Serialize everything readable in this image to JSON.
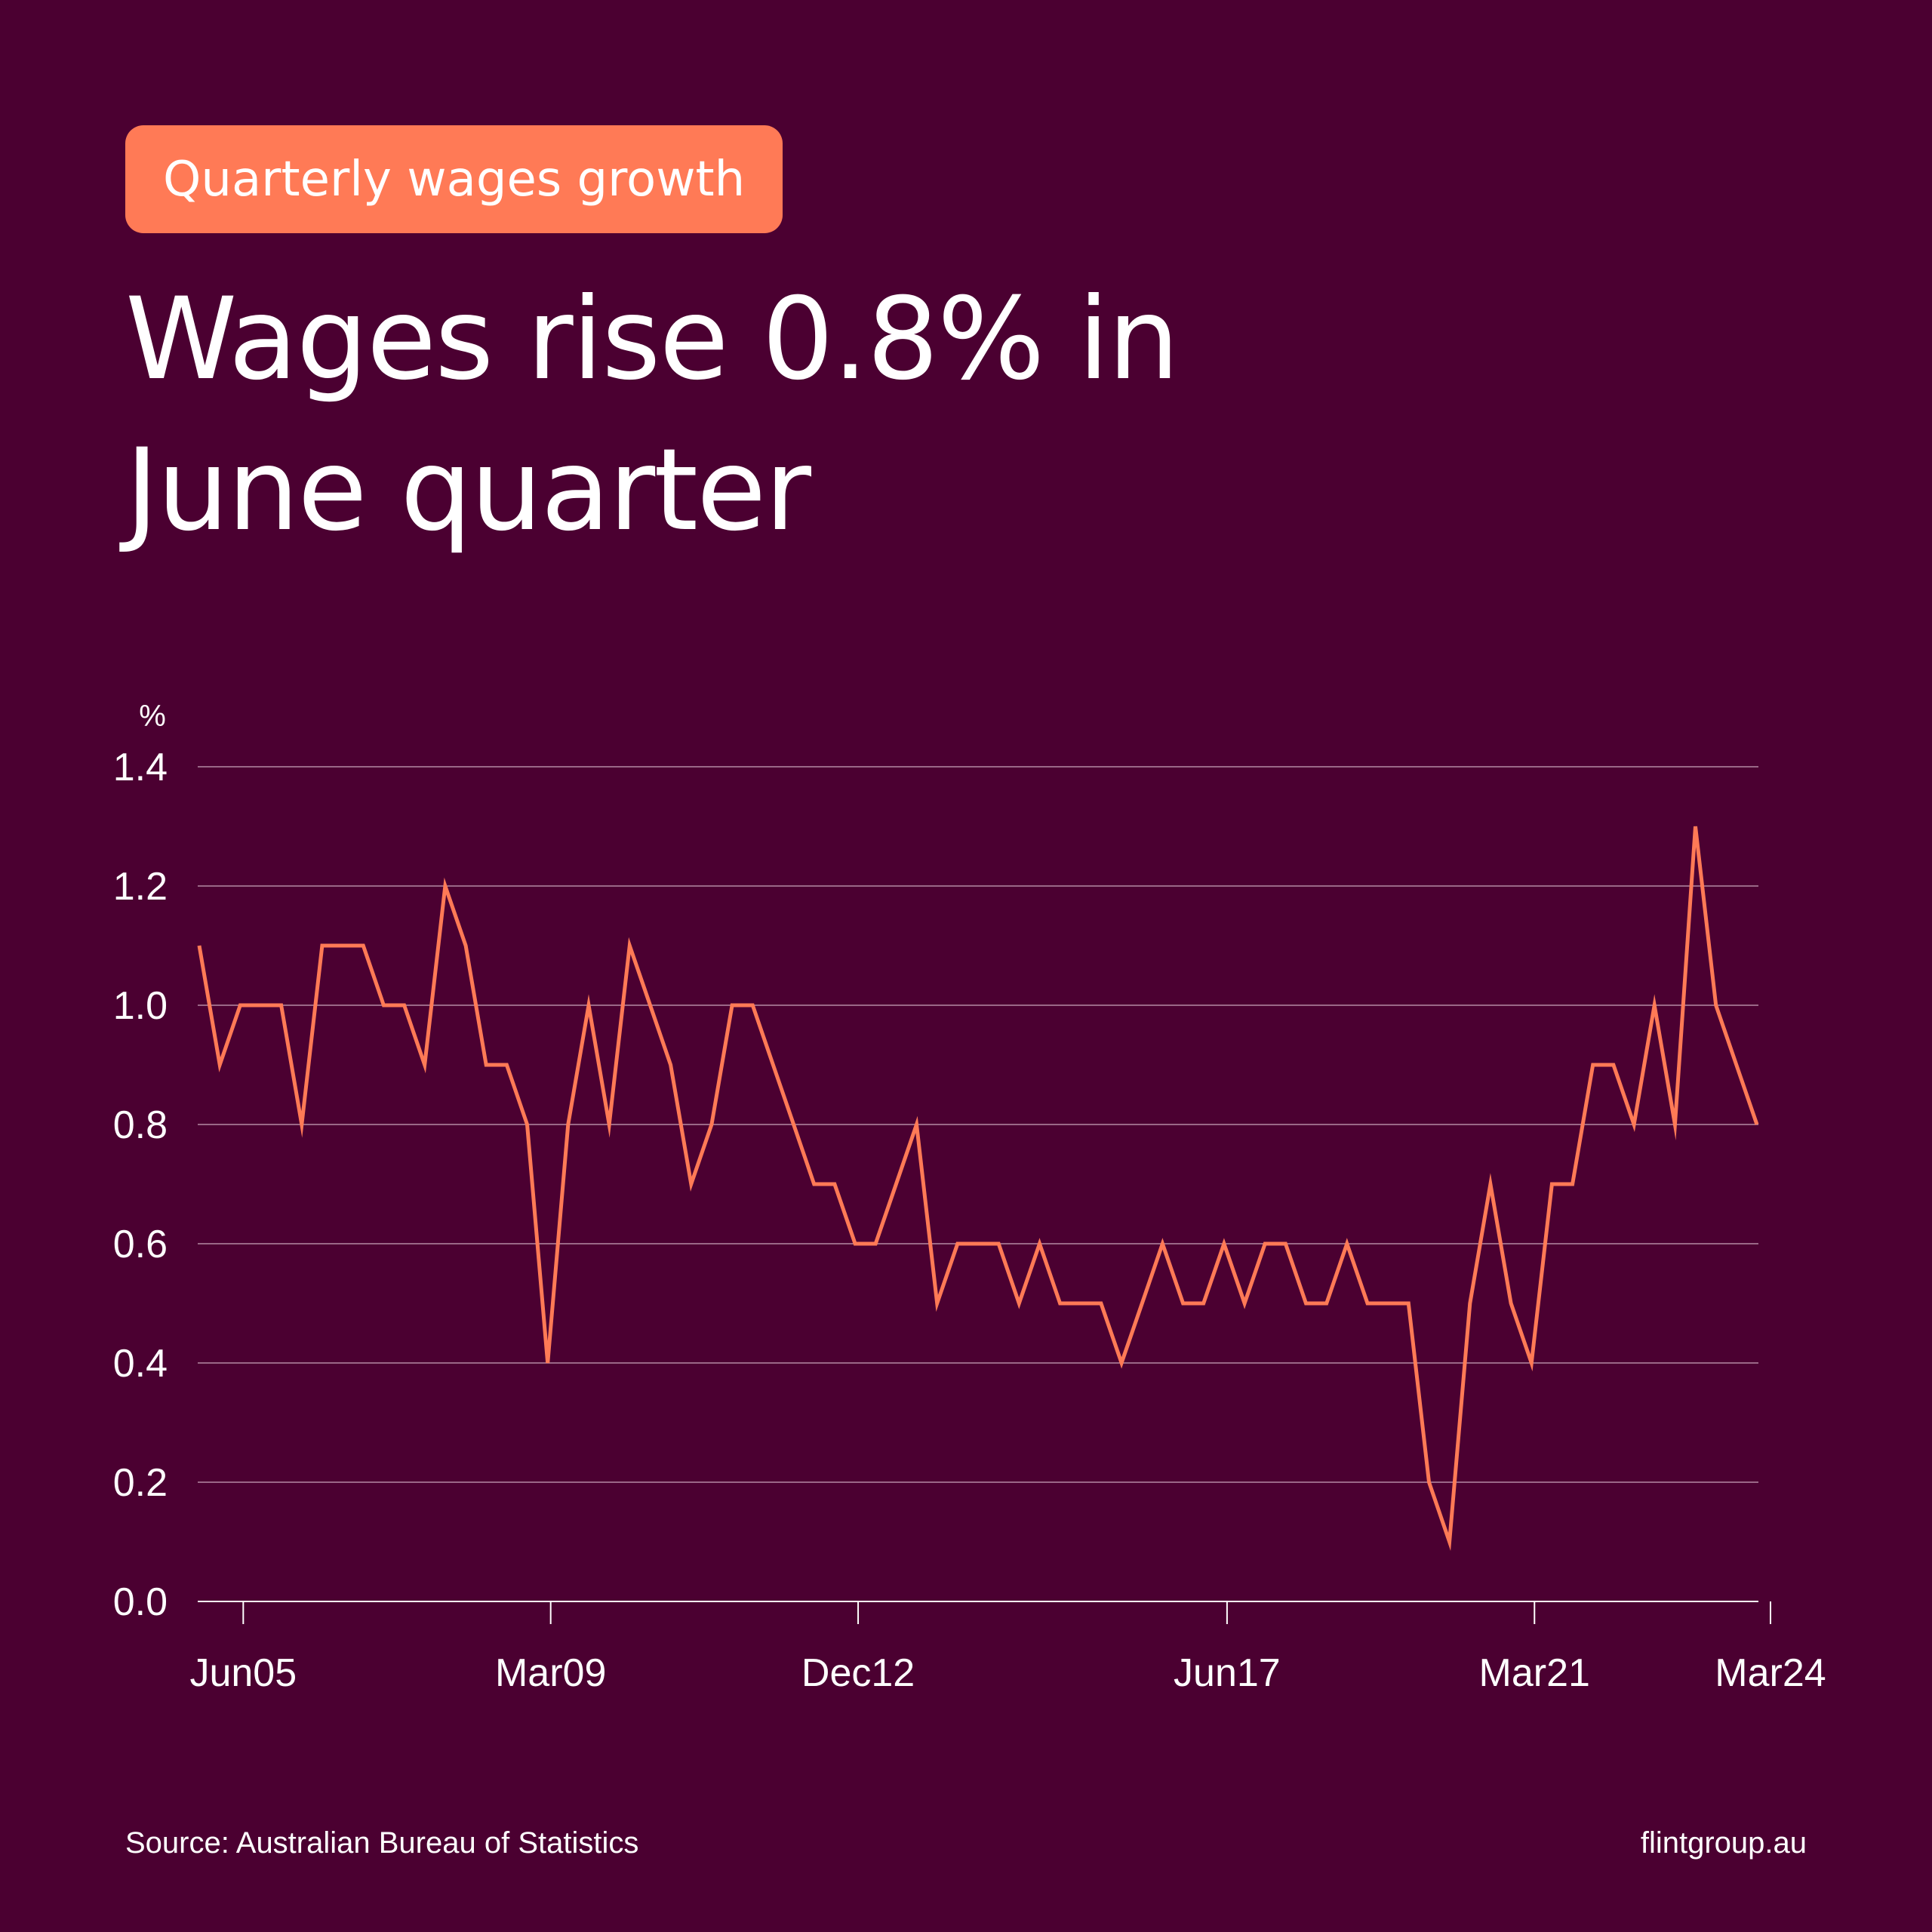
{
  "badge": "Quarterly wages growth",
  "title_line1": "Wages rise 0.8% in",
  "title_line2": "June quarter",
  "source": "Source: Australian Bureau of Statistics",
  "site": "flintgroup.au",
  "colors": {
    "background": "#4b0031",
    "accent": "#ff7a56",
    "text": "#ffffff",
    "grid": "#b58aa4"
  },
  "chart_data": {
    "type": "line",
    "title": "",
    "ylabel": "%",
    "xlabel": "",
    "ylim": [
      0,
      1.4
    ],
    "yticks": [
      "0.0",
      "0.2",
      "0.4",
      "0.6",
      "0.8",
      "1.0",
      "1.2",
      "1.4"
    ],
    "xtick_labels": [
      {
        "label": "Jun05",
        "index": 2
      },
      {
        "label": "Mar09",
        "index": 17
      },
      {
        "label": "Dec12",
        "index": 32
      },
      {
        "label": "Jun17",
        "index": 50
      },
      {
        "label": "Mar21",
        "index": 65
      },
      {
        "label": "Mar24",
        "index": 76
      }
    ],
    "series": [
      {
        "name": "Quarterly wages growth",
        "values": [
          1.1,
          0.9,
          1.0,
          1.0,
          1.0,
          0.8,
          1.1,
          1.1,
          1.1,
          1.0,
          1.0,
          0.9,
          1.2,
          1.1,
          0.9,
          0.9,
          0.8,
          0.4,
          0.8,
          1.0,
          0.8,
          1.1,
          1.0,
          0.9,
          0.7,
          0.8,
          1.0,
          1.0,
          0.9,
          0.8,
          0.7,
          0.7,
          0.6,
          0.6,
          0.7,
          0.8,
          0.5,
          0.6,
          0.6,
          0.6,
          0.5,
          0.6,
          0.5,
          0.5,
          0.5,
          0.4,
          0.5,
          0.6,
          0.5,
          0.5,
          0.6,
          0.5,
          0.6,
          0.6,
          0.5,
          0.5,
          0.6,
          0.5,
          0.5,
          0.5,
          0.2,
          0.1,
          0.5,
          0.7,
          0.5,
          0.4,
          0.7,
          0.7,
          0.9,
          0.9,
          0.8,
          1.0,
          0.8,
          1.3,
          1.0,
          0.9,
          0.8
        ]
      }
    ]
  }
}
